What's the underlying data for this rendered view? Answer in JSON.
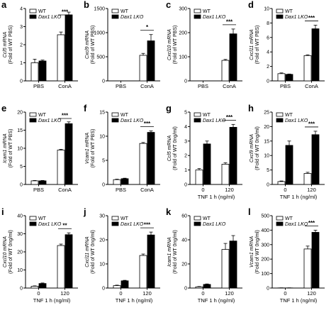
{
  "figure": {
    "legend_wt": "WT",
    "legend_ko": "Dax1 LKO",
    "colors": {
      "wt": "#ffffff",
      "ko": "#000000",
      "axis": "#000000"
    }
  },
  "chart_data": [
    {
      "type": "bar",
      "panel_label": "a",
      "ylabel": [
        "Ccl5 mRNA",
        "(Fold of WT PBS)"
      ],
      "ylim": [
        0,
        4
      ],
      "yticks": [
        0,
        1,
        2,
        3,
        4
      ],
      "xlabel": "",
      "categories": [
        "PBS",
        "ConA"
      ],
      "series": [
        {
          "name": "WT",
          "values": [
            1.0,
            2.55
          ],
          "err": [
            0.2,
            0.15
          ]
        },
        {
          "name": "Dax1 LKO",
          "values": [
            1.1,
            3.65
          ],
          "err": [
            0.05,
            0.15
          ]
        }
      ],
      "significance": [
        {
          "category": "ConA",
          "label": "***"
        }
      ]
    },
    {
      "type": "bar",
      "panel_label": "b",
      "ylabel": [
        "Cxcl9 mRNA",
        "(Fold of WT PBS)"
      ],
      "ylim": [
        0,
        1500
      ],
      "yticks": [
        0,
        500,
        1000,
        1500
      ],
      "xlabel": "",
      "categories": [
        "PBS",
        "ConA"
      ],
      "series": [
        {
          "name": "WT",
          "values": [
            0,
            530
          ],
          "err": [
            0,
            40
          ]
        },
        {
          "name": "Dax1 LKO",
          "values": [
            0,
            830
          ],
          "err": [
            0,
            130
          ]
        }
      ],
      "significance": [
        {
          "category": "ConA",
          "label": "*"
        }
      ]
    },
    {
      "type": "bar",
      "panel_label": "c",
      "ylabel": [
        "Cxcl10 mRNA",
        "(Fold of WT PBS)"
      ],
      "ylim": [
        0,
        300
      ],
      "yticks": [
        0,
        100,
        200,
        300
      ],
      "xlabel": "",
      "categories": [
        "PBS",
        "ConA"
      ],
      "series": [
        {
          "name": "WT",
          "values": [
            0,
            85
          ],
          "err": [
            0,
            4
          ]
        },
        {
          "name": "Dax1 LKO",
          "values": [
            0,
            195
          ],
          "err": [
            0,
            20
          ]
        }
      ],
      "significance": [
        {
          "category": "ConA",
          "label": "***"
        }
      ]
    },
    {
      "type": "bar",
      "panel_label": "d",
      "ylabel": [
        "Cxcl11 mRNA",
        "(Fold of WT PBS)"
      ],
      "ylim": [
        0,
        10
      ],
      "yticks": [
        0,
        2,
        4,
        6,
        8,
        10
      ],
      "xlabel": "",
      "categories": [
        "PBS",
        "ConA"
      ],
      "series": [
        {
          "name": "WT",
          "values": [
            1.0,
            3.5
          ],
          "err": [
            0.1,
            0.1
          ]
        },
        {
          "name": "Dax1 LKO",
          "values": [
            0.9,
            7.2
          ],
          "err": [
            0.05,
            0.5
          ]
        }
      ],
      "significance": [
        {
          "category": "ConA",
          "label": "***"
        }
      ]
    },
    {
      "type": "bar",
      "panel_label": "e",
      "ylabel": [
        "Icam1 mRNA",
        "(Fold of WT PBS)"
      ],
      "ylim": [
        0,
        20
      ],
      "yticks": [
        0,
        5,
        10,
        15,
        20
      ],
      "xlabel": "",
      "categories": [
        "PBS",
        "ConA"
      ],
      "series": [
        {
          "name": "WT",
          "values": [
            1.0,
            9.5
          ],
          "err": [
            0.1,
            0.2
          ]
        },
        {
          "name": "Dax1 LKO",
          "values": [
            1.0,
            16.8
          ],
          "err": [
            0.1,
            0.5
          ]
        }
      ],
      "significance": [
        {
          "category": "ConA",
          "label": "***"
        }
      ]
    },
    {
      "type": "bar",
      "panel_label": "f",
      "ylabel": [
        "Vcam1 mRNA",
        "(Fold of WT PBS)"
      ],
      "ylim": [
        0,
        15
      ],
      "yticks": [
        0,
        5,
        10,
        15
      ],
      "xlabel": "",
      "categories": [
        "PBS",
        "ConA"
      ],
      "series": [
        {
          "name": "WT",
          "values": [
            1.0,
            8.5
          ],
          "err": [
            0.1,
            0.2
          ]
        },
        {
          "name": "Dax1 LKO",
          "values": [
            1.2,
            10.8
          ],
          "err": [
            0.1,
            0.3
          ]
        }
      ],
      "significance": [
        {
          "category": "ConA",
          "label": "***"
        }
      ]
    },
    {
      "type": "bar",
      "panel_label": "g",
      "ylabel": [
        "Ccl5 mRNA",
        "(Fold of WT 0ng/ml)"
      ],
      "ylim": [
        0,
        5
      ],
      "yticks": [
        0,
        1,
        2,
        3,
        4,
        5
      ],
      "xlabel": "TNF 1 h (ng/ml)",
      "categories": [
        "0",
        "120"
      ],
      "series": [
        {
          "name": "WT",
          "values": [
            1.0,
            1.4
          ],
          "err": [
            0.1,
            0.1
          ]
        },
        {
          "name": "Dax1 LKO",
          "values": [
            2.8,
            3.95
          ],
          "err": [
            0.2,
            0.2
          ]
        }
      ],
      "significance": [
        {
          "category": "120",
          "label": "***"
        }
      ]
    },
    {
      "type": "bar",
      "panel_label": "h",
      "ylabel": [
        "Cxcl9 mRNA",
        "(Fold of WT 0ng/ml)"
      ],
      "ylim": [
        0,
        25
      ],
      "yticks": [
        0,
        5,
        10,
        15,
        20,
        25
      ],
      "xlabel": "TNF 1 h (ng/ml)",
      "categories": [
        "0",
        "120"
      ],
      "series": [
        {
          "name": "WT",
          "values": [
            1.0,
            3.8
          ],
          "err": [
            0.2,
            0.4
          ]
        },
        {
          "name": "Dax1 LKO",
          "values": [
            13.5,
            17.2
          ],
          "err": [
            1.5,
            1.2
          ]
        }
      ],
      "significance": [
        {
          "category": "120",
          "label": "***"
        }
      ]
    },
    {
      "type": "bar",
      "panel_label": "i",
      "ylabel": [
        "Cxcl10 mRNA",
        "(Fold of WT 0ng/ml)"
      ],
      "ylim": [
        0,
        40
      ],
      "yticks": [
        0,
        10,
        20,
        30,
        40
      ],
      "xlabel": "TNF 1 h (ng/ml)",
      "categories": [
        "0",
        "120"
      ],
      "series": [
        {
          "name": "WT",
          "values": [
            1.0,
            23.5
          ],
          "err": [
            0.2,
            0.8
          ]
        },
        {
          "name": "Dax1 LKO",
          "values": [
            2.5,
            29.5
          ],
          "err": [
            0.3,
            1.0
          ]
        }
      ],
      "significance": [
        {
          "category": "120",
          "label": "**"
        }
      ]
    },
    {
      "type": "bar",
      "panel_label": "j",
      "ylabel": [
        "Cxcl11 mRNA",
        "(Fold of WT 0ng/ml)"
      ],
      "ylim": [
        0,
        30
      ],
      "yticks": [
        0,
        10,
        20,
        30
      ],
      "xlabel": "TNF 1 h (ng/ml)",
      "categories": [
        "0",
        "120"
      ],
      "series": [
        {
          "name": "WT",
          "values": [
            1.0,
            13.5
          ],
          "err": [
            0.2,
            0.6
          ]
        },
        {
          "name": "Dax1 LKO",
          "values": [
            3.0,
            22.0
          ],
          "err": [
            0.2,
            1.2
          ]
        }
      ],
      "significance": [
        {
          "category": "120",
          "label": "***"
        }
      ]
    },
    {
      "type": "bar",
      "panel_label": "k",
      "ylabel": [
        "Icam1 mRNA",
        "(Fold of WT 0ng/ml)"
      ],
      "ylim": [
        0,
        60
      ],
      "yticks": [
        0,
        20,
        40,
        60
      ],
      "xlabel": "TNF 1 h (ng/ml)",
      "categories": [
        "0",
        "120"
      ],
      "series": [
        {
          "name": "WT",
          "values": [
            1.0,
            32.0
          ],
          "err": [
            0.3,
            5.0
          ]
        },
        {
          "name": "Dax1 LKO",
          "values": [
            3.0,
            39.0
          ],
          "err": [
            0.4,
            4.5
          ]
        }
      ],
      "significance": []
    },
    {
      "type": "bar",
      "panel_label": "l",
      "ylabel": [
        "Vcam1 mRNA",
        "(Fold of WT 0ng/ml)"
      ],
      "ylim": [
        0,
        500
      ],
      "yticks": [
        0,
        100,
        200,
        300,
        400,
        500
      ],
      "xlabel": "TNF 1 h (ng/ml)",
      "categories": [
        "0",
        "120"
      ],
      "series": [
        {
          "name": "WT",
          "values": [
            1.0,
            270
          ],
          "err": [
            0.5,
            20
          ]
        },
        {
          "name": "Dax1 LKO",
          "values": [
            1.0,
            385
          ],
          "err": [
            0.5,
            15
          ]
        }
      ],
      "significance": [
        {
          "category": "120",
          "label": "***"
        }
      ]
    }
  ]
}
